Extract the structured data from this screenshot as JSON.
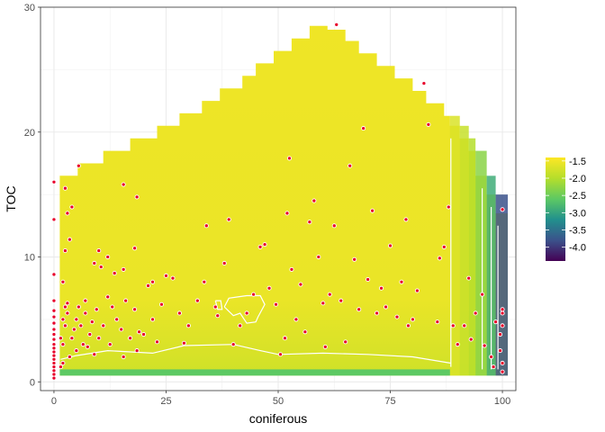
{
  "chart_data": {
    "type": "heatmap",
    "xlabel": "coniferous",
    "ylabel": "TOC",
    "xlim": [
      -3,
      103
    ],
    "ylim": [
      -0.7,
      30
    ],
    "x_ticks": [
      "0",
      "25",
      "50",
      "75",
      "100"
    ],
    "y_ticks": [
      "0",
      "10",
      "20",
      "30"
    ],
    "legend": {
      "placement": "right",
      "ticks": [
        "-1.5",
        "-2.0",
        "-2.5",
        "-3.0",
        "-3.5",
        "-4.0"
      ],
      "range": [
        -4.4,
        -1.4
      ],
      "colors": [
        "#440154",
        "#3b528b",
        "#21908d",
        "#5dc963",
        "#b5de2b",
        "#fde725"
      ]
    },
    "grid": true,
    "surface_outline": [
      [
        1.3,
        1.0
      ],
      [
        1.3,
        16.5
      ],
      [
        5.3,
        16.5
      ],
      [
        5.3,
        17.5
      ],
      [
        11,
        17.5
      ],
      [
        11,
        18.5
      ],
      [
        17,
        18.5
      ],
      [
        17,
        19.5
      ],
      [
        23,
        19.5
      ],
      [
        23,
        20.5
      ],
      [
        28,
        20.5
      ],
      [
        28,
        21.5
      ],
      [
        33,
        21.5
      ],
      [
        33,
        22.5
      ],
      [
        37,
        22.5
      ],
      [
        37,
        23.5
      ],
      [
        42,
        23.5
      ],
      [
        42,
        24.5
      ],
      [
        45,
        24.5
      ],
      [
        45,
        25.5
      ],
      [
        49,
        25.5
      ],
      [
        49,
        26.5
      ],
      [
        53,
        26.5
      ],
      [
        53,
        27.5
      ],
      [
        57,
        27.5
      ],
      [
        57,
        28.5
      ],
      [
        61,
        28.5
      ],
      [
        61,
        28.2
      ],
      [
        65,
        28.2
      ],
      [
        65,
        27.3
      ],
      [
        68,
        27.3
      ],
      [
        68,
        26.3
      ],
      [
        72,
        26.3
      ],
      [
        72,
        25.3
      ],
      [
        76,
        25.3
      ],
      [
        76,
        24.3
      ],
      [
        80,
        24.3
      ],
      [
        80,
        23.3
      ],
      [
        83,
        23.3
      ],
      [
        83,
        22.3
      ],
      [
        87,
        22.3
      ],
      [
        87,
        21.3
      ],
      [
        88.3,
        21.3
      ],
      [
        88.3,
        20.5
      ],
      [
        90.5,
        20.5
      ],
      [
        90.5,
        19.5
      ],
      [
        92.5,
        19.5
      ],
      [
        92.5,
        18.5
      ],
      [
        94,
        18.5
      ],
      [
        94,
        16.5
      ],
      [
        96.5,
        16.5
      ],
      [
        96.5,
        15.0
      ],
      [
        98.5,
        15.0
      ],
      [
        98.5,
        13.5
      ],
      [
        101.2,
        13.5
      ],
      [
        101.2,
        0.5
      ],
      [
        1.3,
        0.5
      ]
    ],
    "surface_values": {
      "base": -1.56,
      "bottom_stripe": -2.6,
      "columns": [
        {
          "x": [
            88.3,
            90.5
          ],
          "value": -1.7
        },
        {
          "x": [
            90.5,
            92.5
          ],
          "value": -1.85
        },
        {
          "x": [
            92.5,
            94
          ],
          "value": -2.0
        },
        {
          "x": [
            94,
            96.5
          ],
          "value": -2.3
        },
        {
          "x": [
            96.5,
            98.5
          ],
          "value": -2.9
        },
        {
          "x": [
            98.5,
            101.2
          ],
          "value": -3.8
        }
      ]
    },
    "contours": [
      [
        [
          88.5,
          1.2
        ],
        [
          88.5,
          19.5
        ]
      ],
      [
        [
          95.5,
          1.0
        ],
        [
          95.5,
          15.5
        ]
      ],
      [
        [
          97.5,
          1.0
        ],
        [
          97.5,
          14.0
        ]
      ],
      [
        [
          99.0,
          1.0
        ],
        [
          99.0,
          12.5
        ]
      ],
      [
        [
          1.5,
          1.8
        ],
        [
          5,
          2.1
        ],
        [
          12,
          2.5
        ],
        [
          22,
          2.3
        ],
        [
          29,
          2.9
        ],
        [
          40,
          3.0
        ],
        [
          46,
          2.5
        ],
        [
          50,
          2.2
        ],
        [
          60,
          2.3
        ],
        [
          70,
          2.2
        ],
        [
          80,
          2.0
        ],
        [
          88.5,
          1.5
        ]
      ],
      [
        [
          38,
          6.0
        ],
        [
          39,
          6.7
        ],
        [
          41,
          6.8
        ],
        [
          43,
          6.9
        ],
        [
          46,
          6.9
        ],
        [
          47,
          6.2
        ],
        [
          45.5,
          5.2
        ],
        [
          45,
          4.8
        ],
        [
          43,
          4.7
        ],
        [
          41.5,
          5.5
        ],
        [
          40,
          5.3
        ],
        [
          38,
          6.0
        ]
      ],
      [
        [
          36,
          6.5
        ],
        [
          36.5,
          5.8
        ],
        [
          37.5,
          5.8
        ],
        [
          37.2,
          6.5
        ],
        [
          36,
          6.5
        ]
      ]
    ],
    "points": [
      [
        0,
        0.3
      ],
      [
        0,
        0.6
      ],
      [
        0,
        0.9
      ],
      [
        0,
        1.2
      ],
      [
        0,
        1.5
      ],
      [
        0,
        1.8
      ],
      [
        0,
        2.1
      ],
      [
        0,
        2.4
      ],
      [
        0,
        2.7
      ],
      [
        0,
        3.0
      ],
      [
        0,
        3.4
      ],
      [
        0,
        3.8
      ],
      [
        0,
        4.2
      ],
      [
        0,
        4.7
      ],
      [
        0,
        5.2
      ],
      [
        0,
        5.7
      ],
      [
        0,
        6.5
      ],
      [
        0,
        8.6
      ],
      [
        0,
        13.0
      ],
      [
        0,
        16.0
      ],
      [
        1.5,
        1.2
      ],
      [
        2.0,
        1.5
      ],
      [
        2.0,
        3.0
      ],
      [
        1.5,
        3.5
      ],
      [
        2.5,
        4.5
      ],
      [
        2.0,
        5.0
      ],
      [
        3.0,
        5.5
      ],
      [
        2.5,
        6.0
      ],
      [
        3.0,
        6.3
      ],
      [
        2.0,
        8.0
      ],
      [
        2.5,
        10.5
      ],
      [
        3.5,
        11.4
      ],
      [
        3.0,
        13.5
      ],
      [
        2.5,
        15.5
      ],
      [
        5.5,
        17.3
      ],
      [
        4.0,
        14.0
      ],
      [
        3.5,
        2.0
      ],
      [
        4.0,
        3.5
      ],
      [
        4.5,
        4.2
      ],
      [
        5.0,
        2.5
      ],
      [
        5.0,
        5.0
      ],
      [
        5.5,
        6.0
      ],
      [
        6.5,
        3.0
      ],
      [
        6.0,
        4.5
      ],
      [
        7.0,
        5.5
      ],
      [
        7.5,
        2.8
      ],
      [
        7.0,
        6.5
      ],
      [
        8.0,
        3.8
      ],
      [
        8.5,
        4.8
      ],
      [
        9.0,
        2.2
      ],
      [
        9.5,
        5.8
      ],
      [
        10.0,
        3.5
      ],
      [
        10.5,
        9.2
      ],
      [
        11.0,
        4.5
      ],
      [
        12.0,
        6.8
      ],
      [
        12.5,
        3.0
      ],
      [
        13.0,
        6.0
      ],
      [
        14.0,
        5.0
      ],
      [
        15.0,
        4.2
      ],
      [
        15.5,
        2.0
      ],
      [
        16.0,
        6.5
      ],
      [
        17.0,
        3.5
      ],
      [
        18.0,
        5.8
      ],
      [
        18.5,
        2.5
      ],
      [
        19.0,
        4.0
      ],
      [
        20.0,
        3.8
      ],
      [
        21.0,
        7.7
      ],
      [
        22.0,
        5.0
      ],
      [
        23.0,
        3.2
      ],
      [
        24.0,
        6.2
      ],
      [
        9.0,
        9.5
      ],
      [
        10.0,
        10.5
      ],
      [
        12.0,
        10.0
      ],
      [
        13.5,
        8.7
      ],
      [
        15.5,
        9.0
      ],
      [
        18.0,
        10.7
      ],
      [
        15.5,
        15.8
      ],
      [
        18.5,
        14.8
      ],
      [
        22.0,
        8.0
      ],
      [
        25.0,
        8.5
      ],
      [
        26.5,
        8.3
      ],
      [
        28.0,
        5.5
      ],
      [
        29.0,
        3.1
      ],
      [
        30.0,
        4.5
      ],
      [
        32.0,
        6.5
      ],
      [
        33.5,
        8.0
      ],
      [
        34.0,
        12.5
      ],
      [
        36.0,
        6.0
      ],
      [
        36.5,
        5.3
      ],
      [
        38.0,
        9.5
      ],
      [
        39.0,
        13.0
      ],
      [
        40.0,
        3.0
      ],
      [
        41.5,
        4.5
      ],
      [
        43.0,
        5.5
      ],
      [
        44.5,
        7.0
      ],
      [
        46.0,
        10.8
      ],
      [
        47.0,
        11.0
      ],
      [
        48.0,
        7.5
      ],
      [
        49.5,
        6.2
      ],
      [
        50.5,
        2.2
      ],
      [
        51.5,
        3.5
      ],
      [
        52.0,
        13.5
      ],
      [
        52.5,
        17.9
      ],
      [
        53.0,
        9.0
      ],
      [
        54.0,
        5.0
      ],
      [
        55.0,
        7.8
      ],
      [
        56.0,
        4.0
      ],
      [
        57.0,
        12.8
      ],
      [
        58.0,
        14.5
      ],
      [
        59.0,
        10.0
      ],
      [
        60.0,
        6.3
      ],
      [
        60.5,
        2.8
      ],
      [
        61.5,
        7.0
      ],
      [
        62.5,
        12.5
      ],
      [
        63.0,
        28.6
      ],
      [
        64.0,
        6.5
      ],
      [
        65.0,
        3.2
      ],
      [
        66.0,
        17.3
      ],
      [
        67.0,
        9.8
      ],
      [
        68.0,
        5.8
      ],
      [
        69.0,
        20.3
      ],
      [
        70.0,
        8.2
      ],
      [
        71.0,
        13.7
      ],
      [
        72.0,
        5.5
      ],
      [
        73.0,
        7.5
      ],
      [
        74.0,
        6.0
      ],
      [
        75.0,
        10.9
      ],
      [
        76.5,
        5.2
      ],
      [
        77.5,
        8.0
      ],
      [
        78.5,
        13.0
      ],
      [
        79.0,
        4.5
      ],
      [
        80.0,
        5.0
      ],
      [
        81.0,
        7.3
      ],
      [
        82.5,
        23.9
      ],
      [
        83.5,
        20.6
      ],
      [
        85.5,
        4.8
      ],
      [
        86.0,
        9.9
      ],
      [
        87.0,
        10.8
      ],
      [
        88.0,
        14.0
      ],
      [
        89.0,
        4.5
      ],
      [
        90.0,
        3.0
      ],
      [
        91.5,
        4.5
      ],
      [
        92.5,
        8.3
      ],
      [
        93.0,
        3.4
      ],
      [
        94.0,
        5.5
      ],
      [
        95.5,
        7.0
      ],
      [
        96.0,
        2.9
      ],
      [
        97.5,
        2.0
      ],
      [
        98.0,
        1.2
      ],
      [
        98.5,
        4.8
      ],
      [
        99.5,
        3.8
      ],
      [
        100.0,
        0.8
      ],
      [
        100.0,
        5.5
      ],
      [
        100.0,
        13.8
      ],
      [
        100.0,
        1.5
      ],
      [
        99.5,
        2.5
      ],
      [
        100.0,
        4.5
      ],
      [
        100.0,
        5.8
      ]
    ]
  }
}
